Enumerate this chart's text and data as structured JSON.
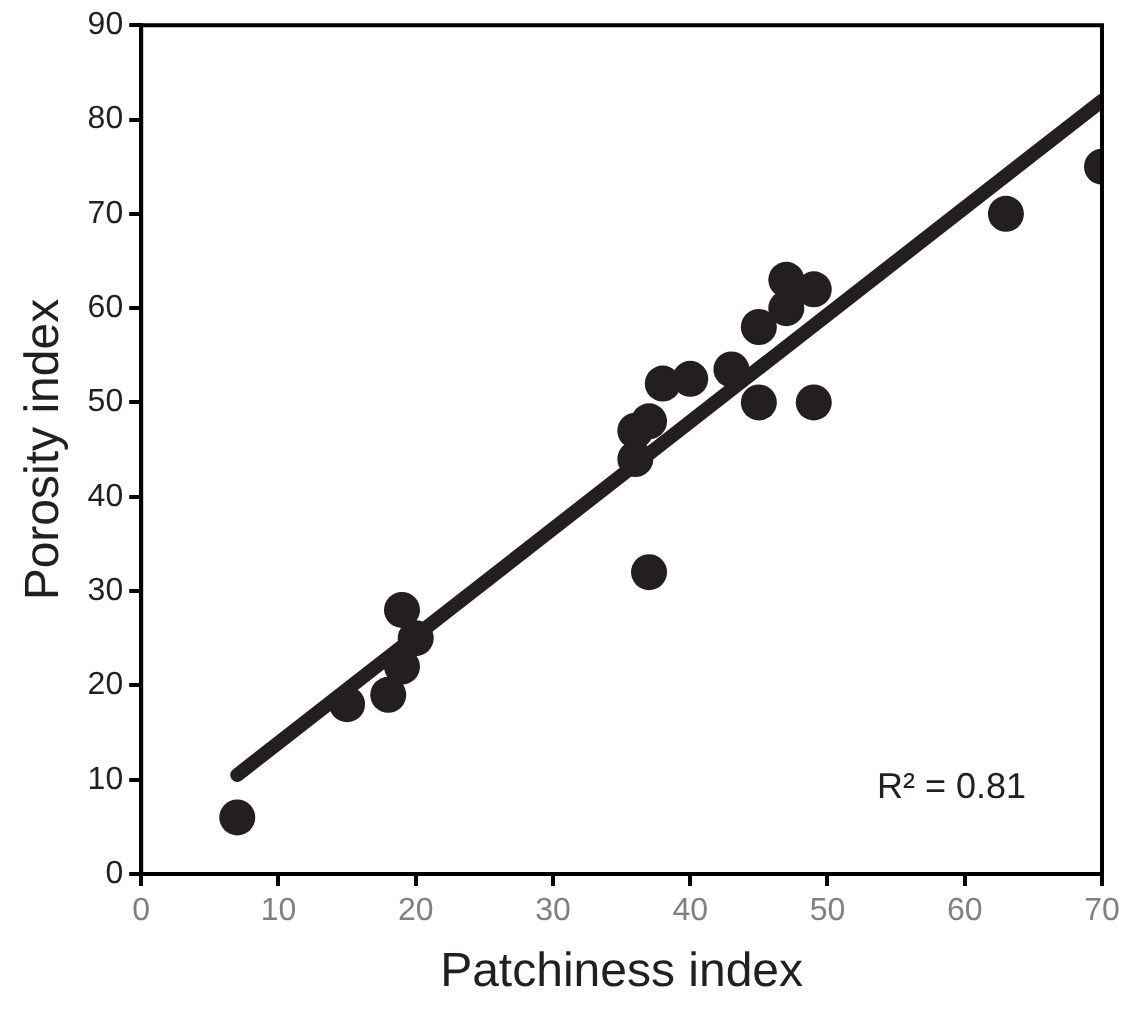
{
  "chart_data": {
    "type": "scatter",
    "xlabel": "Patchiness index",
    "ylabel": "Porosity index",
    "xlim": [
      0,
      70
    ],
    "ylim": [
      0,
      90
    ],
    "xticks": [
      0,
      10,
      20,
      30,
      40,
      50,
      60,
      70
    ],
    "yticks": [
      0,
      10,
      20,
      30,
      40,
      50,
      60,
      70,
      80,
      90
    ],
    "grid": false,
    "legend": false,
    "marker": "circle",
    "series": [
      {
        "color": "#231f20",
        "x": [
          7,
          15,
          18,
          19,
          19,
          20,
          36,
          36,
          37,
          37,
          38,
          39,
          40,
          43,
          45,
          45,
          47,
          47,
          48,
          49,
          49,
          63,
          70
        ],
        "values": [
          6,
          18,
          19,
          22,
          28,
          25,
          44,
          47,
          48,
          32,
          52,
          null,
          52.5,
          53.5,
          50,
          58,
          63,
          60,
          null,
          62,
          50,
          70,
          75
        ]
      },
      {
        "type": "line",
        "color": "#231f20",
        "marker": "none",
        "x": [
          7,
          70
        ],
        "values": [
          10.5,
          82
        ]
      }
    ],
    "annotations": [
      "R² = 0.81"
    ]
  }
}
